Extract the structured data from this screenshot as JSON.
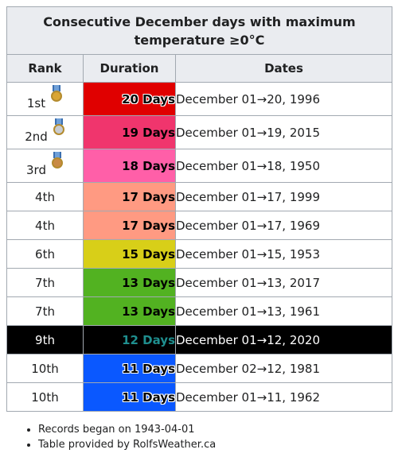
{
  "title": "Consecutive December days with maximum temperature ≥0°C",
  "headers": {
    "rank": "Rank",
    "duration": "Duration",
    "dates": "Dates"
  },
  "rows": [
    {
      "rank": "1st",
      "medal": "gold-medal-icon",
      "medal_color": "#d9a534",
      "duration": "20 Days",
      "dates": "December 01→20, 1996",
      "bg": "#e00000",
      "fg": "#000000",
      "outline": true
    },
    {
      "rank": "2nd",
      "medal": "silver-medal-icon",
      "medal_color": "#c8ccd2",
      "duration": "19 Days",
      "dates": "December 01→19, 2015",
      "bg": "#f0356d",
      "fg": "#000000",
      "outline": false
    },
    {
      "rank": "3rd",
      "medal": "bronze-medal-icon",
      "medal_color": "#c98a44",
      "duration": "18 Days",
      "dates": "December 01→18, 1950",
      "bg": "#ff5fa8",
      "fg": "#000000",
      "outline": false
    },
    {
      "rank": "4th",
      "duration": "17 Days",
      "dates": "December 01→17, 1999",
      "bg": "#ff9a82",
      "fg": "#000000",
      "outline": false
    },
    {
      "rank": "4th",
      "duration": "17 Days",
      "dates": "December 01→17, 1969",
      "bg": "#ff9a82",
      "fg": "#000000",
      "outline": false
    },
    {
      "rank": "6th",
      "duration": "15 Days",
      "dates": "December 01→15, 1953",
      "bg": "#d8cf18",
      "fg": "#000000",
      "outline": false
    },
    {
      "rank": "7th",
      "duration": "13 Days",
      "dates": "December 01→13, 2017",
      "bg": "#52b221",
      "fg": "#000000",
      "outline": false
    },
    {
      "rank": "7th",
      "duration": "13 Days",
      "dates": "December 01→13, 1961",
      "bg": "#52b221",
      "fg": "#000000",
      "outline": false
    },
    {
      "rank": "9th",
      "duration": "12 Days",
      "dates": "December 01→12, 2020",
      "bg": "#000000",
      "fg": "#1f8f8f",
      "outline": false,
      "dark": true
    },
    {
      "rank": "10th",
      "duration": "11 Days",
      "dates": "December 02→12, 1981",
      "bg": "#0a58ff",
      "fg": "#000000",
      "outline": true
    },
    {
      "rank": "10th",
      "duration": "11 Days",
      "dates": "December 01→11, 1962",
      "bg": "#0a58ff",
      "fg": "#000000",
      "outline": true
    }
  ],
  "notes": [
    "Records began on 1943-04-01",
    "Table provided by RolfsWeather.ca"
  ]
}
